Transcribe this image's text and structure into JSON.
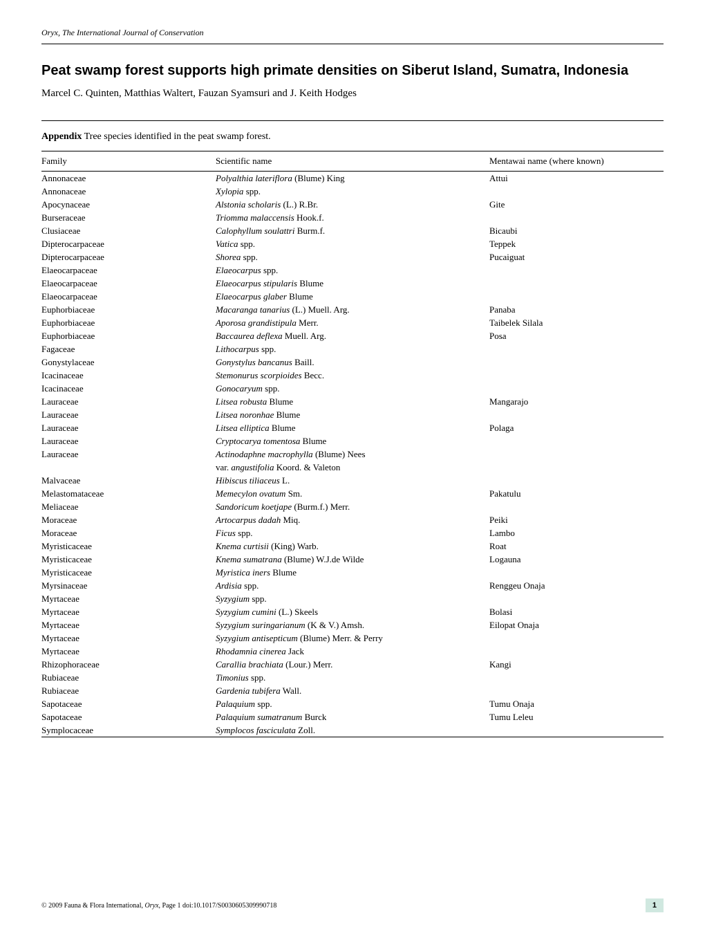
{
  "journal_header": "Oryx, The International Journal of Conservation",
  "article_title": "Peat swamp forest supports high primate densities on Siberut Island, Sumatra, Indonesia",
  "authors": "Marcel C. Quinten, Matthias Waltert, Fauzan Syamsuri and J. Keith Hodges",
  "appendix_label": "Appendix",
  "appendix_caption": " Tree species identified in the peat swamp forest.",
  "table": {
    "headers": {
      "family": "Family",
      "scientific": "Scientific name",
      "mentawai": "Mentawai name (where known)"
    },
    "rows": [
      {
        "family": "Annonaceae",
        "scientific_italic": "Polyalthia lateriflora",
        "scientific_author": " (Blume) King",
        "mentawai": "Attui"
      },
      {
        "family": "Annonaceae",
        "scientific_italic": "Xylopia",
        "scientific_author": " spp.",
        "mentawai": ""
      },
      {
        "family": "Apocynaceae",
        "scientific_italic": "Alstonia scholaris",
        "scientific_author": " (L.) R.Br.",
        "mentawai": "Gite"
      },
      {
        "family": "Burseraceae",
        "scientific_italic": "Triomma malaccensis",
        "scientific_author": " Hook.f.",
        "mentawai": ""
      },
      {
        "family": "Clusiaceae",
        "scientific_italic": "Calophyllum soulattri",
        "scientific_author": " Burm.f.",
        "mentawai": "Bicaubi"
      },
      {
        "family": "Dipterocarpaceae",
        "scientific_italic": "Vatica",
        "scientific_author": " spp.",
        "mentawai": "Teppek"
      },
      {
        "family": "Dipterocarpaceae",
        "scientific_italic": "Shorea",
        "scientific_author": " spp.",
        "mentawai": "Pucaiguat"
      },
      {
        "family": "Elaeocarpaceae",
        "scientific_italic": "Elaeocarpus",
        "scientific_author": " spp.",
        "mentawai": ""
      },
      {
        "family": "Elaeocarpaceae",
        "scientific_italic": "Elaeocarpus stipularis",
        "scientific_author": " Blume",
        "mentawai": ""
      },
      {
        "family": "Elaeocarpaceae",
        "scientific_italic": "Elaeocarpus glaber",
        "scientific_author": " Blume",
        "mentawai": ""
      },
      {
        "family": "Euphorbiaceae",
        "scientific_italic": "Macaranga tanarius",
        "scientific_author": " (L.) Muell. Arg.",
        "mentawai": "Panaba"
      },
      {
        "family": "Euphorbiaceae",
        "scientific_italic": "Aporosa grandistipula",
        "scientific_author": " Merr.",
        "mentawai": "Taibelek Silala"
      },
      {
        "family": "Euphorbiaceae",
        "scientific_italic": "Baccaurea deflexa",
        "scientific_author": " Muell. Arg.",
        "mentawai": "Posa"
      },
      {
        "family": "Fagaceae",
        "scientific_italic": "Lithocarpus",
        "scientific_author": " spp.",
        "mentawai": ""
      },
      {
        "family": "Gonystylaceae",
        "scientific_italic": "Gonystylus bancanus",
        "scientific_author": " Baill.",
        "mentawai": ""
      },
      {
        "family": "Icacinaceae",
        "scientific_italic": "Stemonurus scorpioides",
        "scientific_author": " Becc.",
        "mentawai": ""
      },
      {
        "family": "Icacinaceae",
        "scientific_italic": "Gonocaryum",
        "scientific_author": " spp.",
        "mentawai": ""
      },
      {
        "family": "Lauraceae",
        "scientific_italic": "Litsea robusta",
        "scientific_author": " Blume",
        "mentawai": "Mangarajo"
      },
      {
        "family": "Lauraceae",
        "scientific_italic": "Litsea noronhae",
        "scientific_author": " Blume",
        "mentawai": ""
      },
      {
        "family": "Lauraceae",
        "scientific_italic": "Litsea elliptica",
        "scientific_author": " Blume",
        "mentawai": "Polaga"
      },
      {
        "family": "Lauraceae",
        "scientific_italic": "Cryptocarya tomentosa",
        "scientific_author": " Blume",
        "mentawai": ""
      },
      {
        "family": "Lauraceae",
        "scientific_italic": "Actinodaphne macrophylla",
        "scientific_author": " (Blume) Nees",
        "mentawai": ""
      },
      {
        "family": "",
        "scientific_italic": "",
        "scientific_author": "var. ",
        "scientific_italic2": "angustifolia",
        "scientific_author2": " Koord. & Valeton",
        "mentawai": ""
      },
      {
        "family": "Malvaceae",
        "scientific_italic": "Hibiscus tiliaceus",
        "scientific_author": " L.",
        "mentawai": ""
      },
      {
        "family": "Melastomataceae",
        "scientific_italic": "Memecylon ovatum",
        "scientific_author": " Sm.",
        "mentawai": "Pakatulu"
      },
      {
        "family": "Meliaceae",
        "scientific_italic": "Sandoricum koetjape",
        "scientific_author": " (Burm.f.) Merr.",
        "mentawai": ""
      },
      {
        "family": "Moraceae",
        "scientific_italic": "Artocarpus dadah",
        "scientific_author": " Miq.",
        "mentawai": "Peiki"
      },
      {
        "family": "Moraceae",
        "scientific_italic": "Ficus",
        "scientific_author": " spp.",
        "mentawai": "Lambo"
      },
      {
        "family": "Myristicaceae",
        "scientific_italic": "Knema curtisii",
        "scientific_author": " (King) Warb.",
        "mentawai": "Roat"
      },
      {
        "family": "Myristicaceae",
        "scientific_italic": "Knema sumatrana",
        "scientific_author": " (Blume) W.J.de Wilde",
        "mentawai": "Logauna"
      },
      {
        "family": "Myristicaceae",
        "scientific_italic": "Myristica iners",
        "scientific_author": " Blume",
        "mentawai": ""
      },
      {
        "family": "Myrsinaceae",
        "scientific_italic": "Ardisia",
        "scientific_author": " spp.",
        "mentawai": "Renggeu Onaja"
      },
      {
        "family": "Myrtaceae",
        "scientific_italic": "Syzygium",
        "scientific_author": " spp.",
        "mentawai": ""
      },
      {
        "family": "Myrtaceae",
        "scientific_italic": "Syzygium cumini",
        "scientific_author": " (L.) Skeels",
        "mentawai": "Bolasi"
      },
      {
        "family": "Myrtaceae",
        "scientific_italic": "Syzygium suringarianum",
        "scientific_author": " (K & V.) Amsh.",
        "mentawai": "Eilopat Onaja"
      },
      {
        "family": "Myrtaceae",
        "scientific_italic": "Syzygium antisepticum",
        "scientific_author": " (Blume) Merr. & Perry",
        "mentawai": ""
      },
      {
        "family": "Myrtaceae",
        "scientific_italic": "Rhodamnia cinerea",
        "scientific_author": " Jack",
        "mentawai": ""
      },
      {
        "family": "Rhizophoraceae",
        "scientific_italic": "Carallia brachiata",
        "scientific_author": " (Lour.) Merr.",
        "mentawai": "Kangi"
      },
      {
        "family": "Rubiaceae",
        "scientific_italic": "Timonius",
        "scientific_author": " spp.",
        "mentawai": ""
      },
      {
        "family": "Rubiaceae",
        "scientific_italic": "Gardenia tubifera",
        "scientific_author": " Wall.",
        "mentawai": ""
      },
      {
        "family": "Sapotaceae",
        "scientific_italic": "Palaquium",
        "scientific_author": " spp.",
        "mentawai": "Tumu Onaja"
      },
      {
        "family": "Sapotaceae",
        "scientific_italic": "Palaquium sumatranum",
        "scientific_author": " Burck",
        "mentawai": "Tumu Leleu"
      },
      {
        "family": "Symplocaceae",
        "scientific_italic": "Symplocos fasciculata",
        "scientific_author": " Zoll.",
        "mentawai": ""
      }
    ]
  },
  "footer": {
    "copyright": "© 2009 Fauna & Flora International, ",
    "journal": "Oryx",
    "page_text": ", Page 1    doi:10.1017/S0030605309990718",
    "page_number": "1"
  }
}
